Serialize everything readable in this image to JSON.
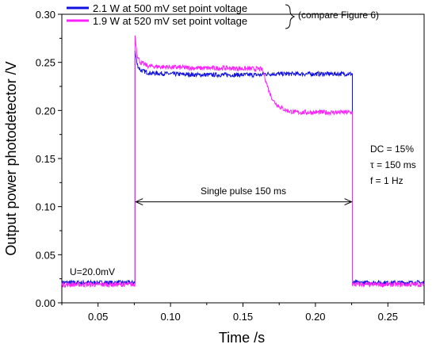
{
  "chart_data": {
    "type": "line",
    "xlabel": "Time /s",
    "ylabel": "Output power photodetector /V",
    "xlim": [
      0.025,
      0.275
    ],
    "ylim": [
      0.0,
      0.3
    ],
    "x_ticks": [
      "0.05",
      "0.10",
      "0.15",
      "0.20",
      "0.25"
    ],
    "y_ticks": [
      "0.00",
      "0.05",
      "0.10",
      "0.15",
      "0.20",
      "0.25",
      "0.30"
    ],
    "x_tick_values": [
      0.05,
      0.1,
      0.15,
      0.2,
      0.25
    ],
    "y_tick_values": [
      0.0,
      0.05,
      0.1,
      0.15,
      0.2,
      0.25,
      0.3
    ],
    "grid": false,
    "legend_position": "top",
    "legend_note": "(compare Figure 6)",
    "series": [
      {
        "name": "2.1 W at 500 mV set point voltage",
        "color": "#1010e0",
        "points": [
          [
            0.025,
            0.021
          ],
          [
            0.0755,
            0.021
          ],
          [
            0.0755,
            0.262
          ],
          [
            0.077,
            0.248
          ],
          [
            0.079,
            0.242
          ],
          [
            0.085,
            0.239
          ],
          [
            0.1,
            0.238
          ],
          [
            0.12,
            0.237
          ],
          [
            0.14,
            0.237
          ],
          [
            0.163,
            0.237
          ],
          [
            0.164,
            0.238
          ],
          [
            0.19,
            0.238
          ],
          [
            0.2255,
            0.238
          ],
          [
            0.2255,
            0.021
          ],
          [
            0.275,
            0.021
          ]
        ]
      },
      {
        "name": "1.9 W at 520 mV set point voltage",
        "color": "#ff22ff",
        "points": [
          [
            0.025,
            0.019
          ],
          [
            0.0755,
            0.019
          ],
          [
            0.0755,
            0.278
          ],
          [
            0.077,
            0.258
          ],
          [
            0.079,
            0.25
          ],
          [
            0.085,
            0.246
          ],
          [
            0.1,
            0.245
          ],
          [
            0.12,
            0.244
          ],
          [
            0.14,
            0.244
          ],
          [
            0.163,
            0.243
          ],
          [
            0.164,
            0.24
          ],
          [
            0.166,
            0.23
          ],
          [
            0.168,
            0.22
          ],
          [
            0.171,
            0.21
          ],
          [
            0.175,
            0.204
          ],
          [
            0.18,
            0.2
          ],
          [
            0.186,
            0.198
          ],
          [
            0.2255,
            0.198
          ],
          [
            0.2255,
            0.019
          ],
          [
            0.275,
            0.019
          ]
        ]
      }
    ],
    "annotations": {
      "params": [
        "DC = 15%",
        "τ    = 150 ms",
        "f    = 1 Hz"
      ],
      "pulse_label": "Single pulse 150 ms",
      "pulse_start": 0.076,
      "pulse_end": 0.225,
      "pulse_y": 0.105,
      "baseline_label": "U=20.0mV"
    }
  }
}
